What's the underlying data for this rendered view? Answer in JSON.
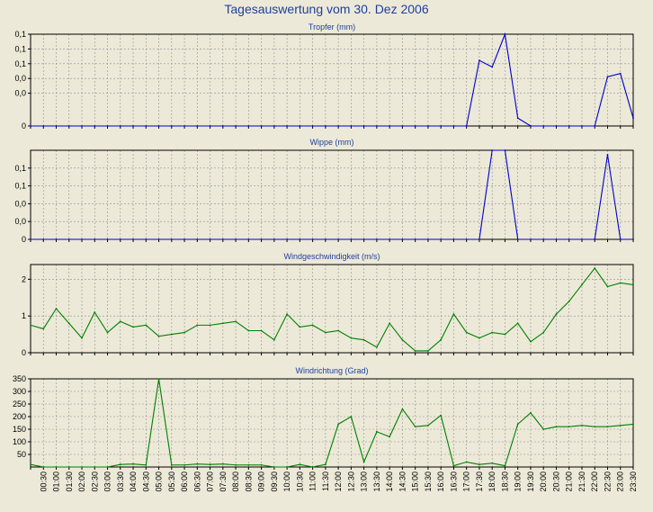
{
  "title": "Tagesauswertung vom 30. Dez 2006",
  "x_ticks": [
    "00:30",
    "01:00",
    "01:30",
    "02:00",
    "02:30",
    "03:00",
    "03:30",
    "04:00",
    "04:30",
    "05:00",
    "05:30",
    "06:00",
    "06:30",
    "07:00",
    "07:30",
    "08:00",
    "08:30",
    "09:00",
    "09:30",
    "10:00",
    "10:30",
    "11:00",
    "11:30",
    "12:00",
    "12:30",
    "13:00",
    "13:30",
    "14:00",
    "14:30",
    "15:00",
    "15:30",
    "16:00",
    "16:30",
    "17:00",
    "17:30",
    "18:00",
    "18:30",
    "19:00",
    "19:30",
    "20:00",
    "20:30",
    "21:00",
    "21:30",
    "22:00",
    "22:30",
    "23:00",
    "23:30"
  ],
  "colors": {
    "background": "#ECE9D8",
    "plot_bg": "#ECE9D8",
    "rain": "#0000CC",
    "wind": "#008000",
    "title": "#1F3FA0",
    "grid": "#909090"
  },
  "chart_data": [
    {
      "type": "line",
      "title": "Tropfer (mm)",
      "series_color": "rain",
      "y_tick_labels": [
        "0,1",
        "0,1",
        "0,1",
        "0,0",
        "0,0",
        "0"
      ],
      "ylim": [
        0,
        0.14
      ],
      "y_ticks": [
        0.14,
        0.1175,
        0.095,
        0.0725,
        0.05,
        0.0
      ],
      "x": [
        "00:00",
        "00:30",
        "01:00",
        "01:30",
        "02:00",
        "02:30",
        "03:00",
        "03:30",
        "04:00",
        "04:30",
        "05:00",
        "05:30",
        "06:00",
        "06:30",
        "07:00",
        "07:30",
        "08:00",
        "08:30",
        "09:00",
        "09:30",
        "10:00",
        "10:30",
        "11:00",
        "11:30",
        "12:00",
        "12:30",
        "13:00",
        "13:30",
        "14:00",
        "14:30",
        "15:00",
        "15:30",
        "16:00",
        "16:30",
        "17:00",
        "17:30",
        "18:00",
        "18:30",
        "19:00",
        "19:30",
        "20:00",
        "20:30",
        "21:00",
        "21:30",
        "22:00",
        "22:30",
        "23:00",
        "23:30"
      ],
      "values": [
        0,
        0,
        0,
        0,
        0,
        0,
        0,
        0,
        0,
        0,
        0,
        0,
        0,
        0,
        0,
        0,
        0,
        0,
        0,
        0,
        0,
        0,
        0,
        0,
        0,
        0,
        0,
        0,
        0,
        0,
        0,
        0,
        0,
        0,
        0,
        0.1,
        0.09,
        0.14,
        0.012,
        0,
        0,
        0,
        0,
        0,
        0,
        0.075,
        0.08,
        0.012
      ]
    },
    {
      "type": "line",
      "title": "Wippe (mm)",
      "series_color": "rain",
      "y_tick_labels": [
        "0,1",
        "0,1",
        "0,0",
        "0,0",
        "0"
      ],
      "ylim": [
        0,
        0.2
      ],
      "y_ticks": [
        0.16,
        0.12,
        0.08,
        0.04,
        0.0
      ],
      "x": [
        "00:00",
        "00:30",
        "01:00",
        "01:30",
        "02:00",
        "02:30",
        "03:00",
        "03:30",
        "04:00",
        "04:30",
        "05:00",
        "05:30",
        "06:00",
        "06:30",
        "07:00",
        "07:30",
        "08:00",
        "08:30",
        "09:00",
        "09:30",
        "10:00",
        "10:30",
        "11:00",
        "11:30",
        "12:00",
        "12:30",
        "13:00",
        "13:30",
        "14:00",
        "14:30",
        "15:00",
        "15:30",
        "16:00",
        "16:30",
        "17:00",
        "17:30",
        "18:00",
        "18:30",
        "19:00",
        "19:30",
        "20:00",
        "20:30",
        "21:00",
        "21:30",
        "22:00",
        "22:30",
        "23:00",
        "23:30"
      ],
      "values": [
        0,
        0,
        0,
        0,
        0,
        0,
        0,
        0,
        0,
        0,
        0,
        0,
        0,
        0,
        0,
        0,
        0,
        0,
        0,
        0,
        0,
        0,
        0,
        0,
        0,
        0,
        0,
        0,
        0,
        0,
        0,
        0,
        0,
        0,
        0,
        0,
        0.2,
        0.2,
        0,
        0,
        0,
        0,
        0,
        0,
        0,
        0.19,
        0,
        0
      ]
    },
    {
      "type": "line",
      "title": "Windgeschwindigkeit (m/s)",
      "series_color": "wind",
      "y_tick_labels": [
        "2",
        "1",
        "0"
      ],
      "ylim": [
        0,
        2.4
      ],
      "y_ticks": [
        2,
        1,
        0
      ],
      "x": [
        "00:00",
        "00:30",
        "01:00",
        "01:30",
        "02:00",
        "02:30",
        "03:00",
        "03:30",
        "04:00",
        "04:30",
        "05:00",
        "05:30",
        "06:00",
        "06:30",
        "07:00",
        "07:30",
        "08:00",
        "08:30",
        "09:00",
        "09:30",
        "10:00",
        "10:30",
        "11:00",
        "11:30",
        "12:00",
        "12:30",
        "13:00",
        "13:30",
        "14:00",
        "14:30",
        "15:00",
        "15:30",
        "16:00",
        "16:30",
        "17:00",
        "17:30",
        "18:00",
        "18:30",
        "19:00",
        "19:30",
        "20:00",
        "20:30",
        "21:00",
        "21:30",
        "22:00",
        "22:30",
        "23:00",
        "23:30"
      ],
      "values": [
        0.75,
        0.65,
        1.2,
        0.8,
        0.4,
        1.1,
        0.55,
        0.85,
        0.7,
        0.75,
        0.45,
        0.5,
        0.55,
        0.75,
        0.75,
        0.8,
        0.85,
        0.6,
        0.6,
        0.35,
        1.05,
        0.7,
        0.75,
        0.55,
        0.6,
        0.4,
        0.35,
        0.15,
        0.8,
        0.35,
        0.05,
        0.05,
        0.35,
        1.05,
        0.55,
        0.4,
        0.55,
        0.5,
        0.8,
        0.3,
        0.55,
        1.05,
        1.4,
        1.85,
        2.3,
        1.8,
        1.9,
        1.85
      ]
    },
    {
      "type": "line",
      "title": "Windrichtung (Grad)",
      "series_color": "wind",
      "y_tick_labels": [
        "350",
        "300",
        "250",
        "200",
        "150",
        "100",
        "50"
      ],
      "ylim": [
        0,
        350
      ],
      "y_ticks": [
        350,
        300,
        250,
        200,
        150,
        100,
        50
      ],
      "x": [
        "00:00",
        "00:30",
        "01:00",
        "01:30",
        "02:00",
        "02:30",
        "03:00",
        "03:30",
        "04:00",
        "04:30",
        "05:00",
        "05:30",
        "06:00",
        "06:30",
        "07:00",
        "07:30",
        "08:00",
        "08:30",
        "09:00",
        "09:30",
        "10:00",
        "10:30",
        "11:00",
        "11:30",
        "12:00",
        "12:30",
        "13:00",
        "13:30",
        "14:00",
        "14:30",
        "15:00",
        "15:30",
        "16:00",
        "16:30",
        "17:00",
        "17:30",
        "18:00",
        "18:30",
        "19:00",
        "19:30",
        "20:00",
        "20:30",
        "21:00",
        "21:30",
        "22:00",
        "22:30",
        "23:00",
        "23:30"
      ],
      "values": [
        10,
        0,
        0,
        0,
        0,
        0,
        0,
        10,
        12,
        8,
        350,
        8,
        8,
        12,
        10,
        12,
        8,
        8,
        8,
        0,
        0,
        10,
        0,
        10,
        170,
        200,
        20,
        140,
        120,
        230,
        160,
        165,
        205,
        5,
        20,
        10,
        15,
        5,
        170,
        215,
        150,
        160,
        160,
        165,
        160,
        160,
        165,
        170
      ]
    }
  ]
}
